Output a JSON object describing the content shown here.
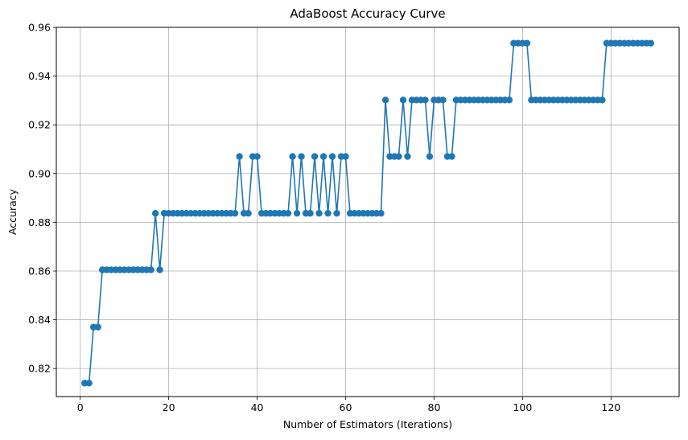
{
  "chart_data": {
    "type": "line",
    "title": "AdaBoost Accuracy Curve",
    "xlabel": "Number of Estimators (Iterations)",
    "ylabel": "Accuracy",
    "xlim": [
      -5.4,
      135.4
    ],
    "ylim": [
      0.8085,
      0.96
    ],
    "xticks": [
      0,
      20,
      40,
      60,
      80,
      100,
      120
    ],
    "yticks": [
      0.82,
      0.84,
      0.86,
      0.88,
      0.9,
      0.92,
      0.94,
      0.96
    ],
    "xtick_labels": [
      "0",
      "20",
      "40",
      "60",
      "80",
      "100",
      "120"
    ],
    "ytick_labels": [
      "0.82",
      "0.84",
      "0.86",
      "0.88",
      "0.90",
      "0.92",
      "0.94",
      "0.96"
    ],
    "grid": true,
    "marker": "circle",
    "color": "#1f77b4",
    "series": [
      {
        "x": [
          1,
          2,
          3,
          4,
          5,
          6,
          7,
          8,
          9,
          10,
          11,
          12,
          13,
          14,
          15,
          16,
          17,
          18,
          19,
          20,
          21,
          22,
          23,
          24,
          25,
          26,
          27,
          28,
          29,
          30,
          31,
          32,
          33,
          34,
          35,
          36,
          37,
          38,
          39,
          40,
          41,
          42,
          43,
          44,
          45,
          46,
          47,
          48,
          49,
          50,
          51,
          52,
          53,
          54,
          55,
          56,
          57,
          58,
          59,
          60,
          61,
          62,
          63,
          64,
          65,
          66,
          67,
          68,
          69,
          70,
          71,
          72,
          73,
          74,
          75,
          76,
          77,
          78,
          79,
          80,
          81,
          82,
          83,
          84,
          85,
          86,
          87,
          88,
          89,
          90,
          91,
          92,
          93,
          94,
          95,
          96,
          97,
          98,
          99,
          100,
          101,
          102,
          103,
          104,
          105,
          106,
          107,
          108,
          109,
          110,
          111,
          112,
          113,
          114,
          115,
          116,
          117,
          118,
          119,
          120,
          121,
          122,
          123,
          124,
          125,
          126,
          127,
          128,
          129
        ],
        "y": [
          0.814,
          0.814,
          0.837,
          0.837,
          0.8605,
          0.8605,
          0.8605,
          0.8605,
          0.8605,
          0.8605,
          0.8605,
          0.8605,
          0.8605,
          0.8605,
          0.8605,
          0.8605,
          0.8837,
          0.8605,
          0.8837,
          0.8837,
          0.8837,
          0.8837,
          0.8837,
          0.8837,
          0.8837,
          0.8837,
          0.8837,
          0.8837,
          0.8837,
          0.8837,
          0.8837,
          0.8837,
          0.8837,
          0.8837,
          0.8837,
          0.907,
          0.8837,
          0.8837,
          0.907,
          0.907,
          0.8837,
          0.8837,
          0.8837,
          0.8837,
          0.8837,
          0.8837,
          0.8837,
          0.907,
          0.8837,
          0.907,
          0.8837,
          0.8837,
          0.907,
          0.8837,
          0.907,
          0.8837,
          0.907,
          0.8837,
          0.907,
          0.907,
          0.8837,
          0.8837,
          0.8837,
          0.8837,
          0.8837,
          0.8837,
          0.8837,
          0.8837,
          0.9302,
          0.907,
          0.907,
          0.907,
          0.9302,
          0.907,
          0.9302,
          0.9302,
          0.9302,
          0.9302,
          0.907,
          0.9302,
          0.9302,
          0.9302,
          0.907,
          0.907,
          0.9302,
          0.9302,
          0.9302,
          0.9302,
          0.9302,
          0.9302,
          0.9302,
          0.9302,
          0.9302,
          0.9302,
          0.9302,
          0.9302,
          0.9302,
          0.9535,
          0.9535,
          0.9535,
          0.9535,
          0.9302,
          0.9302,
          0.9302,
          0.9302,
          0.9302,
          0.9302,
          0.9302,
          0.9302,
          0.9302,
          0.9302,
          0.9302,
          0.9302,
          0.9302,
          0.9302,
          0.9302,
          0.9302,
          0.9302,
          0.9535,
          0.9535,
          0.9535,
          0.9535,
          0.9535,
          0.9535,
          0.9535,
          0.9535,
          0.9535,
          0.9535,
          0.9535
        ]
      }
    ]
  }
}
